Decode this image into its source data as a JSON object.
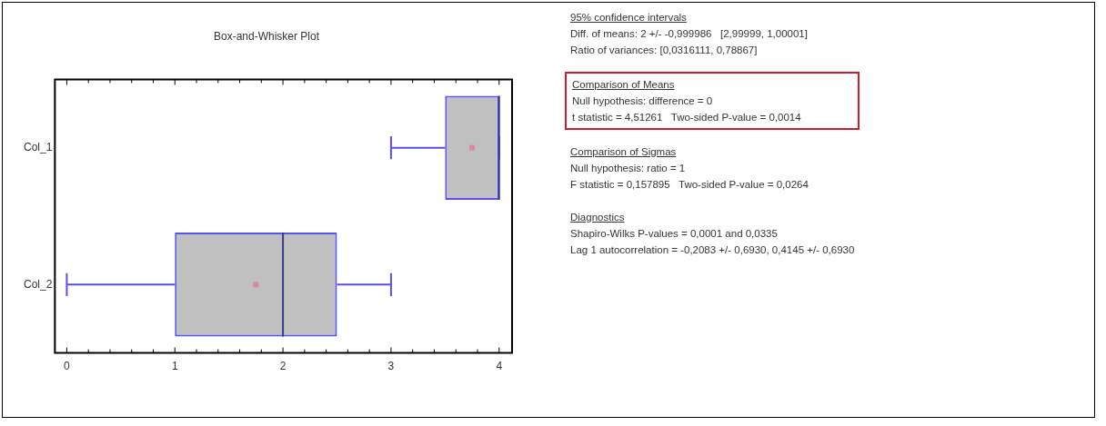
{
  "chart_data": {
    "type": "box",
    "title": "Box-and-Whisker Plot",
    "orientation": "horizontal",
    "categories": [
      "Col_1",
      "Col_2"
    ],
    "color": "#5a4ff0",
    "boxes": [
      {
        "low": 3,
        "q1": 3.5,
        "median": 4,
        "q3": 4,
        "high": 4,
        "mean": 3.75
      },
      {
        "low": 0,
        "q1": 1,
        "median": 2,
        "q3": 2.5,
        "high": 3,
        "mean": 1.75
      }
    ],
    "xlim": [
      -0.11,
      4.12
    ],
    "xticks": [
      0,
      {
        "value": 0.2,
        "label": null
      },
      {
        "value": 0.4,
        "label": null
      },
      {
        "value": 0.6,
        "label": null
      },
      {
        "value": 0.8,
        "label": null
      },
      1,
      {
        "value": 1.2,
        "label": null
      },
      {
        "value": 1.4,
        "label": null
      },
      {
        "value": 1.6,
        "label": null
      },
      {
        "value": 1.8,
        "label": null
      },
      2,
      {
        "value": 2.2,
        "label": null
      },
      {
        "value": 2.4,
        "label": null
      },
      {
        "value": 2.6,
        "label": null
      },
      {
        "value": 2.8,
        "label": null
      },
      3,
      {
        "value": 3.2,
        "label": null
      },
      {
        "value": 3.4,
        "label": null
      },
      {
        "value": 3.6,
        "label": null
      },
      {
        "value": 3.8,
        "label": null
      },
      4
    ],
    "annotations": [
      "95% confidence intervals\nDiff. of means: 2 +/- -0,999986   [2,99999, 1,00001]\nRatio of variances: [0,0316111, 0,78867]",
      "Comparison of Means\nNull hypothesis: difference = 0\nt statistic = 4,51261   Two-sided P-value = 0,0014",
      "Comparison of Sigmas\nNull hypothesis: ratio = 1\nF statistic = 0,157895   Two-sided P-value = 0,0264",
      "Diagnostics\nShapiro-Wilks P-values = 0,0001 and 0,0335\nLag 1 autocorrelation = -0,2083 +/- 0,6930, 0,4145 +/- 0,6930"
    ]
  }
}
